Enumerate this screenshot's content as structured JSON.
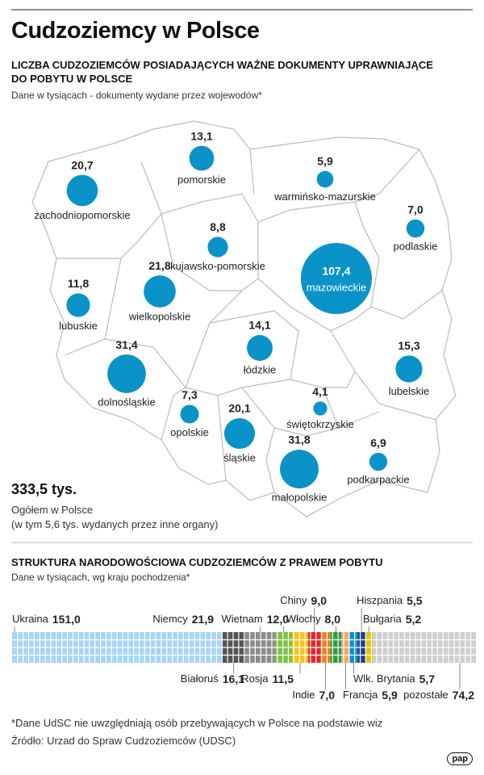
{
  "header": {
    "title": "Cudzoziemcy w Polsce"
  },
  "chart_data": [
    {
      "type": "bubble-map",
      "title": "LICZBA CUDZOZIEMCÓW POSIADAJĄCYCH WAŻNE DOKUMENTY UPRAWNIAJĄCE DO POBYTU W POLSCE",
      "subtitle": "Dane w tysiącach - dokumenty wydane przez wojewodów*",
      "color": "#0a93c9",
      "categories": [
        "pomorskie",
        "warmińsko-mazurskie",
        "zachodniopomorskie",
        "podlaskie",
        "kujawsko-pomorskie",
        "mazowieckie",
        "lubuskie",
        "wielkopolskie",
        "łódzkie",
        "lubelskie",
        "dolnośląskie",
        "świętokrzyskie",
        "opolskie",
        "śląskie",
        "małopolskie",
        "podkarpackie"
      ],
      "values": [
        13.1,
        5.9,
        20.7,
        7.0,
        8.8,
        107.4,
        11.8,
        21.8,
        14.1,
        15.3,
        31.4,
        4.1,
        7.3,
        20.1,
        31.8,
        6.9
      ],
      "value_labels": [
        "13,1",
        "5,9",
        "20,7",
        "7,0",
        "8,8",
        "107,4",
        "11,8",
        "21,8",
        "14,1",
        "15,3",
        "31,4",
        "4,1",
        "7,3",
        "20,1",
        "31,8",
        "6,9"
      ],
      "total_label": "333,5 tys.",
      "total_caption": "Ogółem w Polsce",
      "total_note": "(w tym 5,6 tys. wydanych przez inne organy)"
    },
    {
      "type": "waffle",
      "title": "STRUKTURA NARODOWOŚCIOWA CUDZOZIEMCÓW Z PRAWEM POBYTU",
      "subtitle": "Dane w tysiącach, wg kraju pochodzenia*",
      "categories": [
        "Ukraina",
        "Białoruś",
        "Niemcy",
        "Wietnam",
        "Rosja",
        "Chiny",
        "Indie",
        "Włochy",
        "Francja",
        "Wlk. Brytania",
        "Hiszpania",
        "Bułgaria",
        "pozostałe"
      ],
      "values": [
        151.0,
        16.1,
        21.9,
        12.0,
        11.5,
        9.0,
        7.0,
        8.0,
        5.9,
        5.7,
        5.5,
        5.2,
        74.2
      ],
      "value_labels": [
        "151,0",
        "16,1",
        "21,9",
        "12,0",
        "11,5",
        "9,0",
        "7,0",
        "8,0",
        "5,9",
        "5,7",
        "5,5",
        "5,2",
        "74,2"
      ],
      "colors": [
        "#a6d5f4",
        "#555555",
        "#8c8c8c",
        "#7cc243",
        "#f6c31c",
        "#e2262e",
        "#f47c20",
        "#2e9e48",
        "#f7a56d",
        "#0a93c9",
        "#1f3f8f",
        "#e8c100",
        "#cfcfcf"
      ]
    }
  ],
  "footer": {
    "note": "*Dane UdSC nie uwzględniają osób przebywających w Polsce na podstawie wiz",
    "source": "Źródło: Urzad do Spraw Cudzoziemców (UDSC)",
    "logo": "pap"
  }
}
